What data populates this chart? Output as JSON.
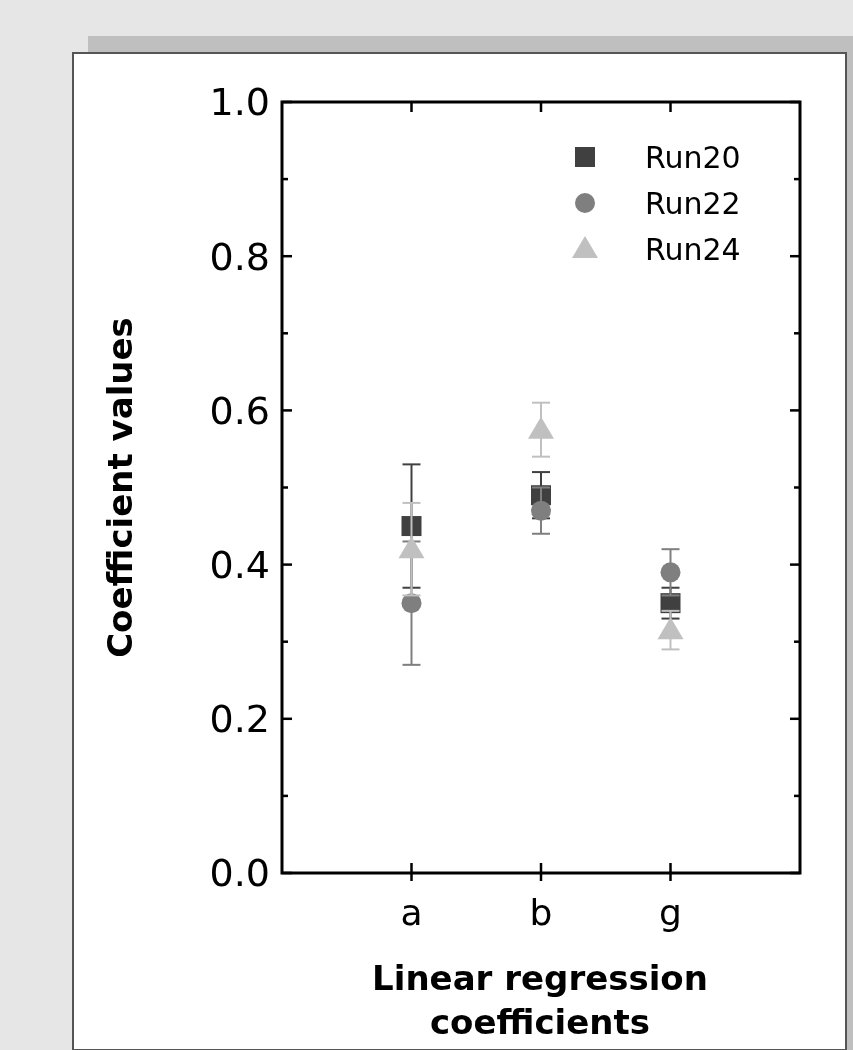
{
  "chart_data": {
    "type": "scatter",
    "xlabel": "Linear regression coefficients",
    "ylabel": "Coefficient values",
    "categories": [
      "a",
      "b",
      "g"
    ],
    "series": [
      {
        "name": "Run20",
        "color": "#404040",
        "marker": "square",
        "values": [
          0.45,
          0.49,
          0.35
        ],
        "errors": [
          0.08,
          0.03,
          0.02
        ]
      },
      {
        "name": "Run22",
        "color": "#7f7f7f",
        "marker": "circle",
        "values": [
          0.35,
          0.47,
          0.39
        ],
        "errors": [
          0.08,
          0.03,
          0.03
        ]
      },
      {
        "name": "Run24",
        "color": "#c0c0c0",
        "marker": "triangle",
        "values": [
          0.42,
          0.575,
          0.315
        ],
        "errors": [
          0.06,
          0.035,
          0.025
        ]
      }
    ],
    "ylim": [
      0,
      1
    ],
    "yticks": [
      {
        "value": 0,
        "label": "0.0"
      },
      {
        "value": 0.1,
        "label": null
      },
      {
        "value": 0.2,
        "label": "0.2"
      },
      {
        "value": 0.3,
        "label": null
      },
      {
        "value": 0.4,
        "label": "0.4"
      },
      {
        "value": 0.5,
        "label": null
      },
      {
        "value": 0.6,
        "label": "0.6"
      },
      {
        "value": 0.7,
        "label": null
      },
      {
        "value": 0.8,
        "label": "0.8"
      },
      {
        "value": 0.9,
        "label": null
      },
      {
        "value": 1,
        "label": "1.0"
      }
    ],
    "grid": false,
    "legend": "top right"
  }
}
